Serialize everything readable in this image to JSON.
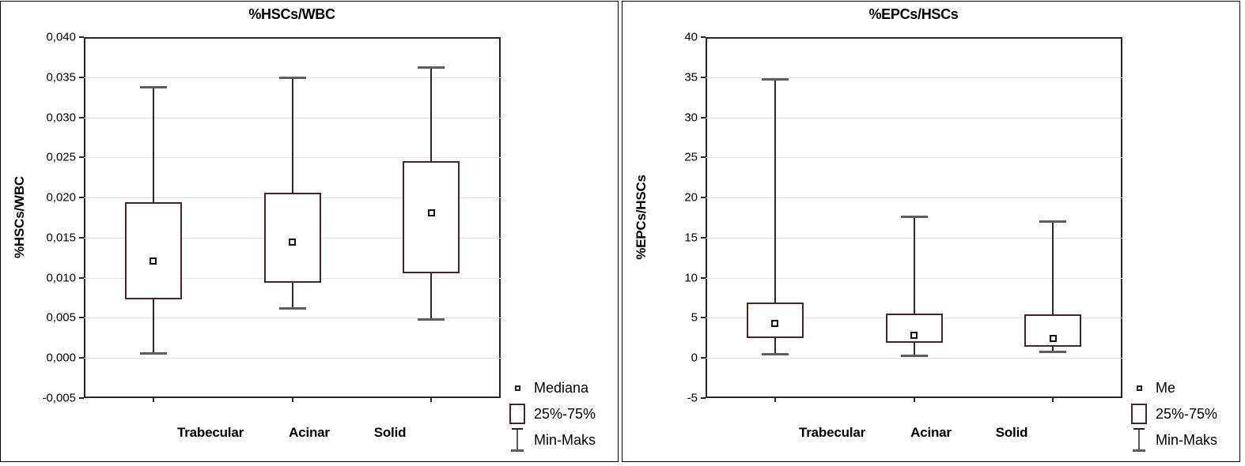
{
  "colors": {
    "box_border": "#502222",
    "whisker_stem": "#2a2a2a",
    "whisker_cap": "#5e5e5e",
    "gridline": "#e3e3e3",
    "frame": "#262626",
    "text": "#000000",
    "panel_border": "#000000"
  },
  "chart_data": [
    {
      "type": "box",
      "title": "%HSCs/WBC",
      "ylabel": "%HSCs/WBC",
      "categories": [
        "Trabecular",
        "Acinar",
        "Solid"
      ],
      "ylim": [
        -0.005,
        0.04
      ],
      "ytick_step": 0.005,
      "ytick_labels": [
        "0,040",
        "0,035",
        "0,030",
        "0,025",
        "0,020",
        "0,015",
        "0,010",
        "0,005",
        "0,000",
        "-0,005"
      ],
      "grid": "horizontal",
      "legend_position": "bottom-right",
      "boxes": [
        {
          "category": "Trabecular",
          "min": 0.0006,
          "q1": 0.0073,
          "median": 0.0121,
          "q3": 0.0194,
          "max": 0.0338
        },
        {
          "category": "Acinar",
          "min": 0.0062,
          "q1": 0.0094,
          "median": 0.0144,
          "q3": 0.0206,
          "max": 0.035
        },
        {
          "category": "Solid",
          "min": 0.0048,
          "q1": 0.0105,
          "median": 0.0181,
          "q3": 0.0245,
          "max": 0.0363
        }
      ],
      "legend": [
        {
          "icon": "median-marker",
          "label": "Mediana"
        },
        {
          "icon": "iqr-box",
          "label": "25%-75%"
        },
        {
          "icon": "min-max-whisker",
          "label": "Min-Maks"
        }
      ]
    },
    {
      "type": "box",
      "title": "%EPCs/HSCs",
      "ylabel": "%EPCs/HSCs",
      "categories": [
        "Trabecular",
        "Acinar",
        "Solid"
      ],
      "ylim": [
        -5,
        40
      ],
      "ytick_step": 5,
      "ytick_labels": [
        "40",
        "35",
        "30",
        "25",
        "20",
        "15",
        "10",
        "5",
        "0",
        "-5"
      ],
      "grid": "horizontal",
      "legend_position": "bottom-right",
      "boxes": [
        {
          "category": "Trabecular",
          "min": 0.5,
          "q1": 2.5,
          "median": 4.3,
          "q3": 6.9,
          "max": 34.8
        },
        {
          "category": "Acinar",
          "min": 0.3,
          "q1": 1.9,
          "median": 2.8,
          "q3": 5.5,
          "max": 17.6
        },
        {
          "category": "Solid",
          "min": 0.8,
          "q1": 1.4,
          "median": 2.4,
          "q3": 5.4,
          "max": 17.1
        }
      ],
      "legend": [
        {
          "icon": "median-marker",
          "label": "Me"
        },
        {
          "icon": "iqr-box",
          "label": "25%-75%"
        },
        {
          "icon": "min-max-whisker",
          "label": "Min-Maks"
        }
      ]
    }
  ]
}
